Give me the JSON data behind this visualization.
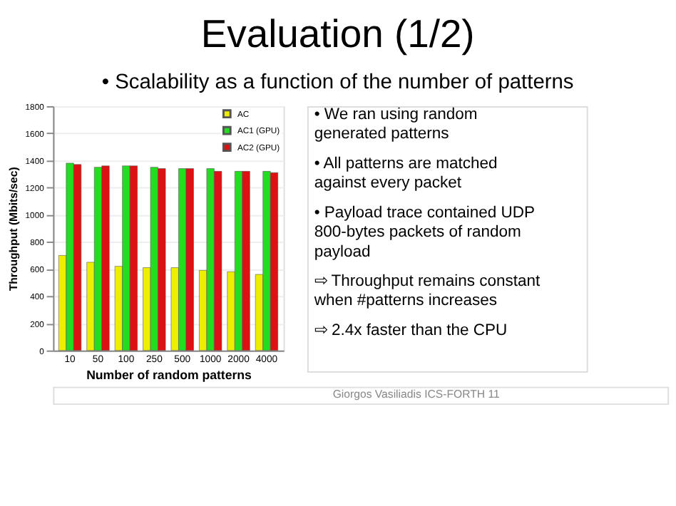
{
  "chart_data": {
    "type": "bar",
    "title": "Evaluation (1/2)",
    "subtitle": "• Scalability as a function of the number of patterns",
    "xlabel": "Number of random patterns",
    "ylabel": "Throughput (Mbits/sec)",
    "categories": [
      "10",
      "50",
      "100",
      "250",
      "500",
      "1000",
      "2000",
      "4000"
    ],
    "series": [
      {
        "name": "AC",
        "color": "#eeee00",
        "values": [
          700,
          650,
          620,
          610,
          610,
          590,
          580,
          560
        ]
      },
      {
        "name": "AC1 (GPU)",
        "color": "#22dd22",
        "values": [
          1380,
          1350,
          1360,
          1350,
          1340,
          1340,
          1320,
          1320
        ]
      },
      {
        "name": "AC2 (GPU)",
        "color": "#dd1111",
        "values": [
          1370,
          1360,
          1360,
          1340,
          1340,
          1320,
          1320,
          1310
        ]
      }
    ],
    "ylim": [
      0,
      1800
    ],
    "yticks": [
      0,
      200,
      400,
      600,
      800,
      1000,
      1200,
      1400,
      1600,
      1800
    ],
    "grid": "y",
    "legend": "top right",
    "annotations": [
      "• We ran using random generated patterns",
      "• All patterns are matched against every packet",
      "• Payload trace contained UDP 800-bytes packets of random payload",
      "⇨ Throughput remains constant when #patterns increases",
      "⇨ 2.4x faster than the CPU",
      "Giorgos Vasiliadis    ICS-FORTH    11"
    ]
  }
}
